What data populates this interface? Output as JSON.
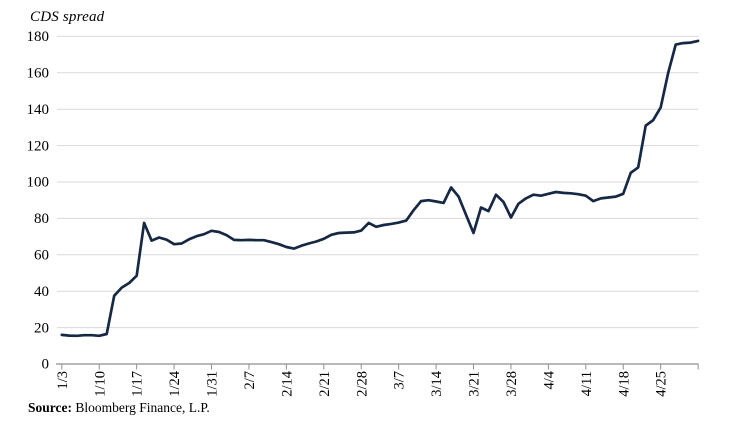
{
  "title": "CDS spread",
  "source": {
    "label": "Source:",
    "text": " Bloomberg Finance, L.P."
  },
  "chart_data": {
    "type": "line",
    "title": "CDS spread",
    "xlabel": "",
    "ylabel": "",
    "ylim": [
      0,
      180
    ],
    "y_ticks": [
      0,
      20,
      40,
      60,
      80,
      100,
      120,
      140,
      160,
      180
    ],
    "x_tick_labels": [
      "1/3",
      "1/10",
      "1/17",
      "1/24",
      "1/31",
      "2/7",
      "2/14",
      "2/21",
      "2/28",
      "3/7",
      "3/14",
      "3/21",
      "3/28",
      "4/4",
      "4/11",
      "4/18",
      "4/25"
    ],
    "grid": "horizontal-only",
    "legend": "none",
    "line_color": "#172844",
    "grid_color": "#d9d9d9",
    "axis_color": "#8f8f8f",
    "x": [
      "1/3",
      "1/4",
      "1/5",
      "1/6",
      "1/7",
      "1/10",
      "1/11",
      "1/12",
      "1/13",
      "1/14",
      "1/17",
      "1/18",
      "1/19",
      "1/20",
      "1/21",
      "1/24",
      "1/25",
      "1/26",
      "1/27",
      "1/28",
      "1/31",
      "2/1",
      "2/2",
      "2/3",
      "2/4",
      "2/7",
      "2/8",
      "2/9",
      "2/10",
      "2/11",
      "2/14",
      "2/15",
      "2/16",
      "2/17",
      "2/18",
      "2/21",
      "2/22",
      "2/23",
      "2/24",
      "2/25",
      "2/28",
      "3/1",
      "3/2",
      "3/3",
      "3/4",
      "3/7",
      "3/8",
      "3/9",
      "3/10",
      "3/11",
      "3/14",
      "3/15",
      "3/16",
      "3/17",
      "3/18",
      "3/21",
      "3/22",
      "3/23",
      "3/24",
      "3/25",
      "3/28",
      "3/29",
      "3/30",
      "3/31",
      "4/1",
      "4/4",
      "4/5",
      "4/6",
      "4/7",
      "4/8",
      "4/11",
      "4/12",
      "4/13",
      "4/14",
      "4/15",
      "4/18",
      "4/19",
      "4/20",
      "4/21",
      "4/22",
      "4/25",
      "4/26",
      "4/27",
      "4/28",
      "4/29",
      "5/2"
    ],
    "values": [
      16,
      15.6,
      15.5,
      15.8,
      15.8,
      15.5,
      16.5,
      37.5,
      42,
      44.5,
      48.5,
      77.5,
      67.8,
      69.5,
      68.3,
      65.8,
      66.2,
      68.5,
      70.2,
      71.3,
      73.2,
      72.5,
      70.8,
      68.2,
      68,
      68.2,
      68,
      68,
      67,
      65.8,
      64.3,
      63.4,
      65,
      66.2,
      67.3,
      68.8,
      71,
      72,
      72.2,
      72.3,
      73.3,
      77.5,
      75.4,
      76.4,
      77,
      77.7,
      78.8,
      84.5,
      89.5,
      90,
      89.3,
      88.5,
      97,
      92,
      82,
      72,
      86,
      84,
      93,
      89,
      80.5,
      88,
      91,
      93,
      92.5,
      93.5,
      94.5,
      94,
      93.8,
      93.3,
      92.5,
      89.5,
      91,
      91.5,
      92,
      93.5,
      105,
      108,
      131,
      134,
      141,
      160,
      175.5,
      176.3,
      176.6,
      177.5
    ]
  }
}
